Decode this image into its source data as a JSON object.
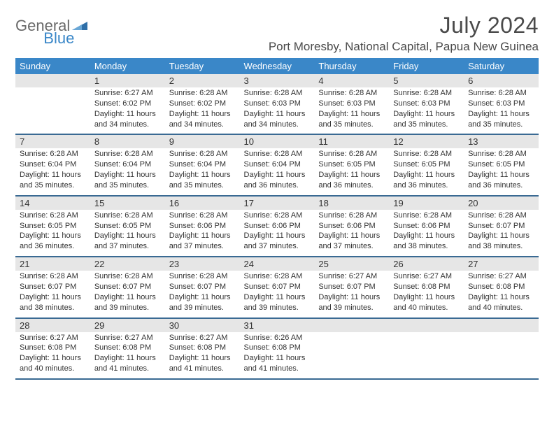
{
  "logo": {
    "text1": "General",
    "text2": "Blue"
  },
  "title": "July 2024",
  "location": "Port Moresby, National Capital, Papua New Guinea",
  "colors": {
    "header_bg": "#3a87c8",
    "header_fg": "#ffffff",
    "daynum_bg": "#e6e6e6",
    "rule": "#3a6a93",
    "logo_gray": "#6a6a6a",
    "logo_blue": "#3a87c8",
    "title_color": "#4a4a4a"
  },
  "typography": {
    "title_fontsize": 32,
    "location_fontsize": 17,
    "header_fontsize": 13,
    "daynum_fontsize": 13,
    "detail_fontsize": 11
  },
  "day_headers": [
    "Sunday",
    "Monday",
    "Tuesday",
    "Wednesday",
    "Thursday",
    "Friday",
    "Saturday"
  ],
  "weeks": [
    [
      {
        "num": "",
        "sunrise": "",
        "sunset": "",
        "daylight": ""
      },
      {
        "num": "1",
        "sunrise": "Sunrise: 6:27 AM",
        "sunset": "Sunset: 6:02 PM",
        "daylight": "Daylight: 11 hours and 34 minutes."
      },
      {
        "num": "2",
        "sunrise": "Sunrise: 6:28 AM",
        "sunset": "Sunset: 6:02 PM",
        "daylight": "Daylight: 11 hours and 34 minutes."
      },
      {
        "num": "3",
        "sunrise": "Sunrise: 6:28 AM",
        "sunset": "Sunset: 6:03 PM",
        "daylight": "Daylight: 11 hours and 34 minutes."
      },
      {
        "num": "4",
        "sunrise": "Sunrise: 6:28 AM",
        "sunset": "Sunset: 6:03 PM",
        "daylight": "Daylight: 11 hours and 35 minutes."
      },
      {
        "num": "5",
        "sunrise": "Sunrise: 6:28 AM",
        "sunset": "Sunset: 6:03 PM",
        "daylight": "Daylight: 11 hours and 35 minutes."
      },
      {
        "num": "6",
        "sunrise": "Sunrise: 6:28 AM",
        "sunset": "Sunset: 6:03 PM",
        "daylight": "Daylight: 11 hours and 35 minutes."
      }
    ],
    [
      {
        "num": "7",
        "sunrise": "Sunrise: 6:28 AM",
        "sunset": "Sunset: 6:04 PM",
        "daylight": "Daylight: 11 hours and 35 minutes."
      },
      {
        "num": "8",
        "sunrise": "Sunrise: 6:28 AM",
        "sunset": "Sunset: 6:04 PM",
        "daylight": "Daylight: 11 hours and 35 minutes."
      },
      {
        "num": "9",
        "sunrise": "Sunrise: 6:28 AM",
        "sunset": "Sunset: 6:04 PM",
        "daylight": "Daylight: 11 hours and 35 minutes."
      },
      {
        "num": "10",
        "sunrise": "Sunrise: 6:28 AM",
        "sunset": "Sunset: 6:04 PM",
        "daylight": "Daylight: 11 hours and 36 minutes."
      },
      {
        "num": "11",
        "sunrise": "Sunrise: 6:28 AM",
        "sunset": "Sunset: 6:05 PM",
        "daylight": "Daylight: 11 hours and 36 minutes."
      },
      {
        "num": "12",
        "sunrise": "Sunrise: 6:28 AM",
        "sunset": "Sunset: 6:05 PM",
        "daylight": "Daylight: 11 hours and 36 minutes."
      },
      {
        "num": "13",
        "sunrise": "Sunrise: 6:28 AM",
        "sunset": "Sunset: 6:05 PM",
        "daylight": "Daylight: 11 hours and 36 minutes."
      }
    ],
    [
      {
        "num": "14",
        "sunrise": "Sunrise: 6:28 AM",
        "sunset": "Sunset: 6:05 PM",
        "daylight": "Daylight: 11 hours and 36 minutes."
      },
      {
        "num": "15",
        "sunrise": "Sunrise: 6:28 AM",
        "sunset": "Sunset: 6:05 PM",
        "daylight": "Daylight: 11 hours and 37 minutes."
      },
      {
        "num": "16",
        "sunrise": "Sunrise: 6:28 AM",
        "sunset": "Sunset: 6:06 PM",
        "daylight": "Daylight: 11 hours and 37 minutes."
      },
      {
        "num": "17",
        "sunrise": "Sunrise: 6:28 AM",
        "sunset": "Sunset: 6:06 PM",
        "daylight": "Daylight: 11 hours and 37 minutes."
      },
      {
        "num": "18",
        "sunrise": "Sunrise: 6:28 AM",
        "sunset": "Sunset: 6:06 PM",
        "daylight": "Daylight: 11 hours and 37 minutes."
      },
      {
        "num": "19",
        "sunrise": "Sunrise: 6:28 AM",
        "sunset": "Sunset: 6:06 PM",
        "daylight": "Daylight: 11 hours and 38 minutes."
      },
      {
        "num": "20",
        "sunrise": "Sunrise: 6:28 AM",
        "sunset": "Sunset: 6:07 PM",
        "daylight": "Daylight: 11 hours and 38 minutes."
      }
    ],
    [
      {
        "num": "21",
        "sunrise": "Sunrise: 6:28 AM",
        "sunset": "Sunset: 6:07 PM",
        "daylight": "Daylight: 11 hours and 38 minutes."
      },
      {
        "num": "22",
        "sunrise": "Sunrise: 6:28 AM",
        "sunset": "Sunset: 6:07 PM",
        "daylight": "Daylight: 11 hours and 39 minutes."
      },
      {
        "num": "23",
        "sunrise": "Sunrise: 6:28 AM",
        "sunset": "Sunset: 6:07 PM",
        "daylight": "Daylight: 11 hours and 39 minutes."
      },
      {
        "num": "24",
        "sunrise": "Sunrise: 6:28 AM",
        "sunset": "Sunset: 6:07 PM",
        "daylight": "Daylight: 11 hours and 39 minutes."
      },
      {
        "num": "25",
        "sunrise": "Sunrise: 6:27 AM",
        "sunset": "Sunset: 6:07 PM",
        "daylight": "Daylight: 11 hours and 39 minutes."
      },
      {
        "num": "26",
        "sunrise": "Sunrise: 6:27 AM",
        "sunset": "Sunset: 6:08 PM",
        "daylight": "Daylight: 11 hours and 40 minutes."
      },
      {
        "num": "27",
        "sunrise": "Sunrise: 6:27 AM",
        "sunset": "Sunset: 6:08 PM",
        "daylight": "Daylight: 11 hours and 40 minutes."
      }
    ],
    [
      {
        "num": "28",
        "sunrise": "Sunrise: 6:27 AM",
        "sunset": "Sunset: 6:08 PM",
        "daylight": "Daylight: 11 hours and 40 minutes."
      },
      {
        "num": "29",
        "sunrise": "Sunrise: 6:27 AM",
        "sunset": "Sunset: 6:08 PM",
        "daylight": "Daylight: 11 hours and 41 minutes."
      },
      {
        "num": "30",
        "sunrise": "Sunrise: 6:27 AM",
        "sunset": "Sunset: 6:08 PM",
        "daylight": "Daylight: 11 hours and 41 minutes."
      },
      {
        "num": "31",
        "sunrise": "Sunrise: 6:26 AM",
        "sunset": "Sunset: 6:08 PM",
        "daylight": "Daylight: 11 hours and 41 minutes."
      },
      {
        "num": "",
        "sunrise": "",
        "sunset": "",
        "daylight": ""
      },
      {
        "num": "",
        "sunrise": "",
        "sunset": "",
        "daylight": ""
      },
      {
        "num": "",
        "sunrise": "",
        "sunset": "",
        "daylight": ""
      }
    ]
  ]
}
